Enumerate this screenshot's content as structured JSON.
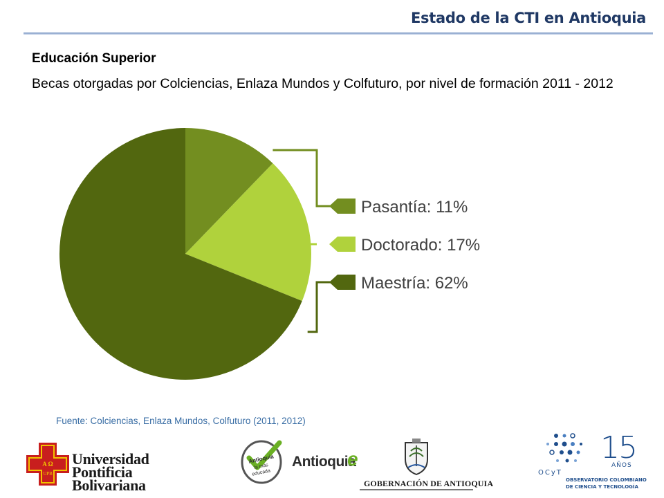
{
  "header": {
    "title": "Estado de la CTI en Antioquia"
  },
  "section": {
    "heading": "Educación Superior",
    "subtitle": "Becas otorgadas por Colciencias, Enlaza Mundos y Colfuturo, por nivel de formación 2011 - 2012"
  },
  "chart_data": {
    "type": "pie",
    "title": "",
    "slices": [
      {
        "label": "Pasantía",
        "value": 11,
        "display": "Pasantía: 11%",
        "color": "#738e20"
      },
      {
        "label": "Doctorado",
        "value": 17,
        "display": "Doctorado: 17%",
        "color": "#b0d23c"
      },
      {
        "label": "Maestría",
        "value": 62,
        "display": "Maestría: 62%",
        "color": "#52670f"
      }
    ],
    "unit": "%",
    "legend": "right"
  },
  "source": {
    "text": "Fuente: Colciencias, Enlaza Mundos, Colfuturo (2011, 2012)"
  },
  "logos": {
    "upb": {
      "name": "Universidad Pontificia Bolivariana",
      "lines": [
        "Universidad",
        "Pontificia",
        "Bolivariana"
      ],
      "shield_letters": "A Ω UPB"
    },
    "antioquia": {
      "word": "Antioquia",
      "e": "e",
      "tagline": "Antioquia la más educada"
    },
    "gobernacion": {
      "text": "GOBERNACIÓN DE ANTIOQUIA"
    },
    "ocyt": {
      "number": "15",
      "anos": "AÑOS",
      "abbr": "OCyT",
      "line1": "OBSERVATORIO COLOMBIANO",
      "line2": "DE CIENCIA Y TECNOLOGÍA"
    }
  },
  "colors": {
    "title": "#1f3864",
    "source": "#3a6ea5",
    "accent": "#6ab023"
  }
}
